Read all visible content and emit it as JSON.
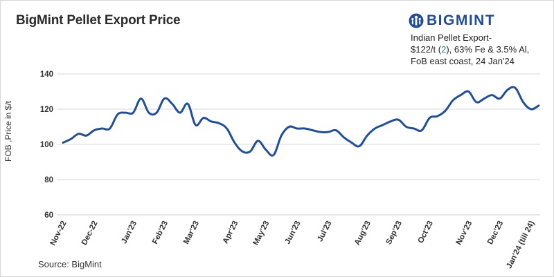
{
  "header": {
    "title": "BigMint Pellet Export Price",
    "brand": "BIGMINT"
  },
  "annotation": {
    "line1": "Indian Pellet Export-",
    "line2_prefix": "$122/t (",
    "line2_highlight": "2",
    "line2_suffix": "), 63% Fe & 3.5% Al,",
    "line3": "FoB east coast,  24 Jan'24"
  },
  "footer": {
    "source": "Source: BigMint"
  },
  "colors": {
    "line": "#1f4e9c",
    "gridline": "#d9d9d9",
    "brand": "#1f4d9a",
    "highlight": "#1f8a8a"
  },
  "chart_data": {
    "type": "line",
    "title": "BigMint Pellet Export Price",
    "ylabel": "FOB ,Price in $/t",
    "xlabel": "",
    "ylim": [
      60,
      140
    ],
    "yticks": [
      60,
      80,
      100,
      120,
      140
    ],
    "grid": "horizontal",
    "x_tick_labels": [
      {
        "label": "Nov-22",
        "index": 0
      },
      {
        "label": "Dec-22",
        "index": 4
      },
      {
        "label": "Jan'23",
        "index": 9
      },
      {
        "label": "Feb'23",
        "index": 13
      },
      {
        "label": "Mar'23",
        "index": 17
      },
      {
        "label": "Apr'23",
        "index": 22
      },
      {
        "label": "May'23",
        "index": 26
      },
      {
        "label": "Jun'23",
        "index": 30
      },
      {
        "label": "Jul'23",
        "index": 34
      },
      {
        "label": "Aug'23",
        "index": 39
      },
      {
        "label": "Sep'23",
        "index": 43
      },
      {
        "label": "Oct'23",
        "index": 47
      },
      {
        "label": "Nov'23",
        "index": 52
      },
      {
        "label": "Dec'23",
        "index": 56
      },
      {
        "label": "Jan'24 (till 24)",
        "index": 60
      }
    ],
    "series": [
      {
        "values": [
          101,
          103,
          106,
          105,
          108,
          109,
          109,
          117,
          118,
          118,
          126,
          118,
          118,
          126,
          123,
          118,
          123,
          111,
          115,
          113,
          112,
          109,
          101,
          96,
          96,
          102,
          97,
          94,
          105,
          110,
          109,
          109,
          108,
          107,
          107,
          108,
          104,
          101,
          99,
          105,
          109,
          111,
          113,
          114,
          110,
          109,
          108,
          115,
          116,
          119,
          125,
          128,
          130,
          124,
          126,
          128,
          126,
          131,
          132,
          124,
          120,
          122
        ]
      }
    ]
  }
}
